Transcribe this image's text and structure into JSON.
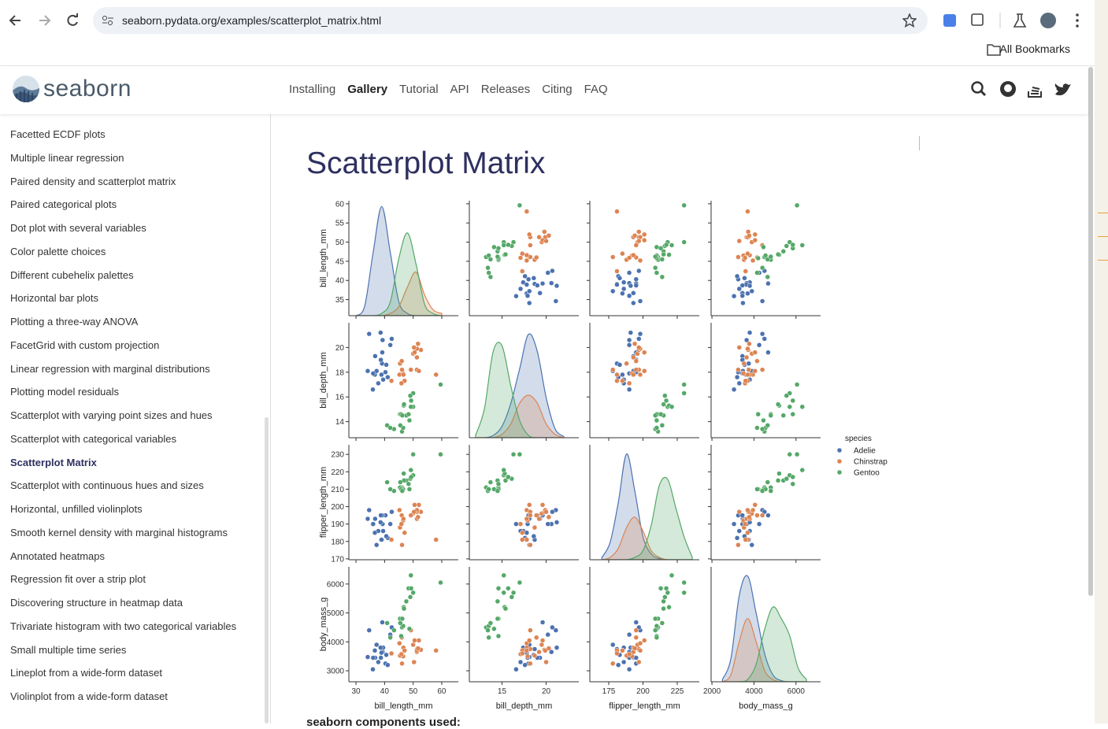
{
  "browser": {
    "url": "seaborn.pydata.org/examples/scatterplot_matrix.html",
    "bookmarks": "All Bookmarks"
  },
  "site": {
    "brand": "seaborn",
    "nav": [
      "Installing",
      "Gallery",
      "Tutorial",
      "API",
      "Releases",
      "Citing",
      "FAQ"
    ],
    "nav_active": 1
  },
  "sidebar": {
    "items": [
      "Facetted ECDF plots",
      "Multiple linear regression",
      "Paired density and scatterplot matrix",
      "Paired categorical plots",
      "Dot plot with several variables",
      "Color palette choices",
      "Different cubehelix palettes",
      "Horizontal bar plots",
      "Plotting a three-way ANOVA",
      "FacetGrid with custom projection",
      "Linear regression with marginal distributions",
      "Plotting model residuals",
      "Scatterplot with varying point sizes and hues",
      "Scatterplot with categorical variables",
      "Scatterplot Matrix",
      "Scatterplot with continuous hues and sizes",
      "Horizontal, unfilled violinplots",
      "Smooth kernel density with marginal histograms",
      "Annotated heatmaps",
      "Regression fit over a strip plot",
      "Discovering structure in heatmap data",
      "Trivariate histogram with two categorical variables",
      "Small multiple time series",
      "Lineplot from a wide-form dataset",
      "Violinplot from a wide-form dataset"
    ],
    "active": 14
  },
  "page_title": "Scatterplot Matrix",
  "components_label": "seaborn components used:",
  "chart_data": {
    "type": "pairplot",
    "legend_title": "species",
    "variables": [
      {
        "name": "bill_length_mm",
        "xlim": [
          27.5,
          65.8
        ],
        "ylim": [
          30.8,
          60.8
        ],
        "xticks": [
          30,
          40,
          50,
          60
        ],
        "yticks": [
          35,
          40,
          45,
          50,
          55,
          60
        ],
        "density": {
          "x": [
            30,
            33,
            36,
            39,
            42,
            45,
            48,
            51,
            54,
            57,
            60
          ],
          "series": [
            [
              0,
              0.08,
              0.55,
              0.95,
              0.55,
              0.12,
              0.02,
              0,
              0,
              0,
              0
            ],
            [
              0,
              0,
              0,
              0,
              0.02,
              0.08,
              0.25,
              0.38,
              0.18,
              0.05,
              0.02
            ],
            [
              0,
              0,
              0,
              0.02,
              0.12,
              0.5,
              0.72,
              0.45,
              0.1,
              0.02,
              0
            ]
          ]
        }
      },
      {
        "name": "bill_depth_mm",
        "xlim": [
          11.3,
          23.7
        ],
        "ylim": [
          12.7,
          22.0
        ],
        "xticks": [
          15,
          20
        ],
        "yticks": [
          14,
          16,
          18,
          20
        ],
        "density": {
          "x": [
            12,
            13,
            14,
            15,
            16,
            17,
            18,
            19,
            20,
            21,
            22
          ],
          "series": [
            [
              0,
              0,
              0.02,
              0.1,
              0.3,
              0.6,
              0.9,
              0.75,
              0.35,
              0.08,
              0.01
            ],
            [
              0,
              0,
              0,
              0.03,
              0.12,
              0.3,
              0.37,
              0.3,
              0.12,
              0.03,
              0
            ],
            [
              0.02,
              0.25,
              0.75,
              0.8,
              0.45,
              0.15,
              0.02,
              0,
              0,
              0,
              0
            ]
          ]
        }
      },
      {
        "name": "flipper_length_mm",
        "xlim": [
          161.2,
          241.1
        ],
        "ylim": [
          169.5,
          235.5
        ],
        "xticks": [
          175,
          200,
          225
        ],
        "yticks": [
          170,
          180,
          190,
          200,
          210,
          220,
          230
        ],
        "density": {
          "x": [
            170,
            176,
            182,
            188,
            194,
            200,
            206,
            212,
            218,
            224,
            230,
            236
          ],
          "series": [
            [
              0.02,
              0.15,
              0.5,
              0.92,
              0.6,
              0.2,
              0.05,
              0.01,
              0,
              0,
              0,
              0
            ],
            [
              0,
              0.02,
              0.1,
              0.28,
              0.37,
              0.25,
              0.08,
              0.02,
              0,
              0,
              0,
              0
            ],
            [
              0,
              0,
              0,
              0,
              0.02,
              0.08,
              0.3,
              0.65,
              0.7,
              0.45,
              0.2,
              0.02
            ]
          ]
        }
      },
      {
        "name": "body_mass_g",
        "xlim": [
          1960,
          7170
        ],
        "ylim": [
          2620,
          6595
        ],
        "xticks": [
          2000,
          4000,
          6000
        ],
        "yticks": [
          3000,
          4000,
          5000,
          6000
        ],
        "density": {
          "x": [
            2500,
            2900,
            3300,
            3700,
            4100,
            4500,
            4900,
            5300,
            5700,
            6100,
            6500
          ],
          "series": [
            [
              0.02,
              0.2,
              0.75,
              0.92,
              0.6,
              0.25,
              0.06,
              0.01,
              0,
              0,
              0
            ],
            [
              0,
              0.06,
              0.35,
              0.55,
              0.35,
              0.1,
              0.02,
              0,
              0,
              0,
              0
            ],
            [
              0,
              0,
              0,
              0.02,
              0.15,
              0.45,
              0.65,
              0.55,
              0.4,
              0.12,
              0.02
            ]
          ]
        }
      }
    ],
    "series": [
      {
        "name": "Adelie",
        "color": "#4c72b0",
        "rows": [
          [
            39.1,
            18.7,
            181,
            3750
          ],
          [
            39.5,
            17.4,
            186,
            3800
          ],
          [
            40.3,
            18.0,
            195,
            3250
          ],
          [
            36.7,
            19.3,
            193,
            3450
          ],
          [
            39.3,
            20.6,
            190,
            3650
          ],
          [
            38.9,
            17.8,
            181,
            3625
          ],
          [
            39.2,
            19.6,
            195,
            4675
          ],
          [
            34.1,
            18.1,
            193,
            3475
          ],
          [
            42.0,
            20.2,
            190,
            4250
          ],
          [
            37.8,
            17.1,
            186,
            3300
          ],
          [
            41.1,
            17.6,
            182,
            3200
          ],
          [
            38.6,
            21.2,
            191,
            3800
          ],
          [
            34.6,
            21.1,
            198,
            4400
          ],
          [
            36.6,
            17.8,
            185,
            3700
          ],
          [
            38.7,
            19.0,
            195,
            3450
          ],
          [
            42.5,
            20.7,
            197,
            4500
          ],
          [
            35.9,
            16.6,
            190,
            3050
          ],
          [
            37.2,
            18.1,
            178,
            3900
          ],
          [
            40.6,
            18.6,
            183,
            3550
          ],
          [
            36.0,
            17.9,
            190,
            3450
          ]
        ]
      },
      {
        "name": "Chinstrap",
        "color": "#dd8452",
        "rows": [
          [
            46.5,
            17.9,
            192,
            3500
          ],
          [
            50.0,
            19.5,
            196,
            3900
          ],
          [
            51.3,
            19.2,
            193,
            3650
          ],
          [
            45.4,
            18.7,
            188,
            3525
          ],
          [
            52.7,
            19.8,
            197,
            3725
          ],
          [
            45.2,
            17.8,
            198,
            3950
          ],
          [
            46.1,
            18.2,
            178,
            3250
          ],
          [
            51.3,
            18.2,
            197,
            3750
          ],
          [
            46.0,
            18.9,
            195,
            4150
          ],
          [
            51.3,
            19.9,
            198,
            3700
          ],
          [
            46.6,
            17.8,
            193,
            3800
          ],
          [
            51.7,
            20.3,
            194,
            3775
          ],
          [
            47.0,
            17.3,
            185,
            3700
          ],
          [
            52.0,
            18.1,
            201,
            4050
          ],
          [
            45.9,
            17.1,
            190,
            3575
          ],
          [
            50.5,
            19.6,
            201,
            4050
          ],
          [
            50.3,
            20.0,
            197,
            3300
          ],
          [
            58.0,
            17.8,
            181,
            3700
          ],
          [
            49.2,
            18.2,
            195,
            4400
          ],
          [
            42.4,
            17.3,
            181,
            3600
          ]
        ]
      },
      {
        "name": "Gentoo",
        "color": "#55a868",
        "rows": [
          [
            46.1,
            13.2,
            211,
            4500
          ],
          [
            50.0,
            16.3,
            230,
            5700
          ],
          [
            48.7,
            14.1,
            210,
            4450
          ],
          [
            50.0,
            15.2,
            218,
            5700
          ],
          [
            47.6,
            14.5,
            215,
            5400
          ],
          [
            46.5,
            13.5,
            210,
            4550
          ],
          [
            45.4,
            14.6,
            211,
            4800
          ],
          [
            46.7,
            15.3,
            219,
            5200
          ],
          [
            43.3,
            13.4,
            209,
            4400
          ],
          [
            46.8,
            15.4,
            215,
            5150
          ],
          [
            40.9,
            13.7,
            214,
            4650
          ],
          [
            49.0,
            16.1,
            216,
            5550
          ],
          [
            45.5,
            13.7,
            214,
            4650
          ],
          [
            48.4,
            14.6,
            213,
            5850
          ],
          [
            45.8,
            14.6,
            210,
            4200
          ],
          [
            49.3,
            15.7,
            217,
            5850
          ],
          [
            42.0,
            13.5,
            210,
            4150
          ],
          [
            49.2,
            15.2,
            221,
            6300
          ],
          [
            46.2,
            14.5,
            209,
            4800
          ],
          [
            59.6,
            17.0,
            230,
            6050
          ]
        ]
      }
    ]
  }
}
